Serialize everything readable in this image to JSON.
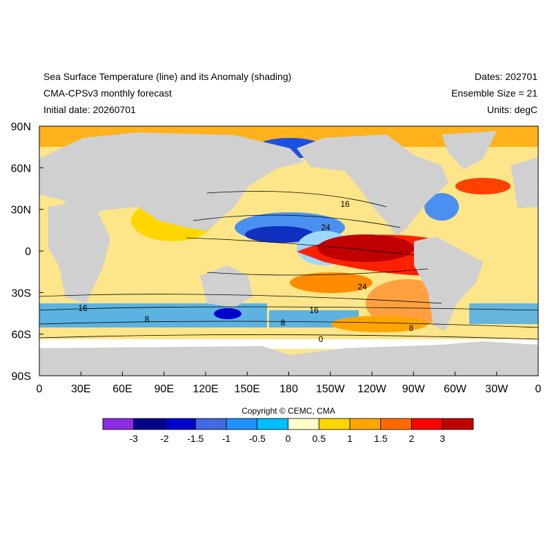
{
  "header": {
    "title": "Sea Surface Temperature (line) and its Anomaly (shading)",
    "subtitle": "CMA-CPSv3 monthly forecast",
    "initial_date": "Initial date: 20260701",
    "dates": "Dates: 202701",
    "ensemble": "Ensemble Size = 21",
    "units": "Units: degC"
  },
  "map": {
    "x_labels": [
      "0",
      "30E",
      "60E",
      "90E",
      "120E",
      "150E",
      "180",
      "150W",
      "120W",
      "90W",
      "60W",
      "30W",
      "0"
    ],
    "y_labels": [
      "90N",
      "60N",
      "30N",
      "0",
      "30S",
      "60S",
      "90S"
    ],
    "contour_labels": [
      "16",
      "24",
      "24",
      "16",
      "16",
      "8",
      "0",
      "8",
      "8"
    ]
  },
  "colorbar": {
    "colors": [
      "#8b2be2",
      "#00008b",
      "#0000cd",
      "#4169e1",
      "#1e90ff",
      "#00bfff",
      "#ffffc8",
      "#ffd700",
      "#ffa500",
      "#ff6a00",
      "#ff0000",
      "#c00000"
    ],
    "labels": [
      "-3",
      "-2",
      "-1.5",
      "-1",
      "-0.5",
      "0",
      "0.5",
      "1",
      "1.5",
      "2",
      "3"
    ]
  },
  "copyright": "Copyright © CEMC, CMA"
}
